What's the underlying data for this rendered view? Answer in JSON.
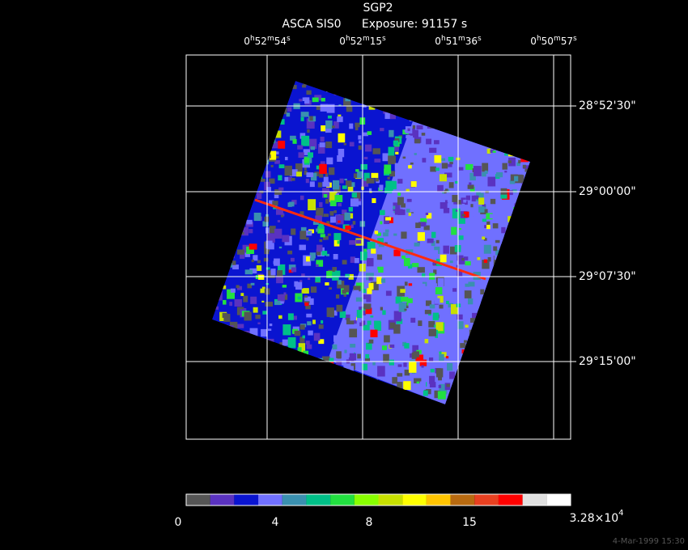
{
  "title": "SGP2",
  "subtitle": {
    "instrument": "ASCA SIS0",
    "exposure": "Exposure: 91157 s"
  },
  "ra_labels": [
    [
      "0",
      "h",
      "52",
      "m",
      "54",
      "s"
    ],
    [
      "0",
      "h",
      "52",
      "m",
      "15",
      "s"
    ],
    [
      "0",
      "h",
      "51",
      "m",
      "36",
      "s"
    ],
    [
      "0",
      "h",
      "50",
      "m",
      "57",
      "s"
    ]
  ],
  "dec_labels": [
    "28°52'30\"",
    "29°00'00\"",
    "29°07'30\"",
    "29°15'00\""
  ],
  "colorbar": {
    "colors": [
      "#555555",
      "#5a32c0",
      "#0a14d0",
      "#7070ff",
      "#3a90b0",
      "#00c088",
      "#22e040",
      "#88ff00",
      "#c8e000",
      "#ffff00",
      "#ffc400",
      "#b86a10",
      "#e84020",
      "#ff0000",
      "#e0e0e0",
      "#ffffff"
    ],
    "labels": [
      "0",
      "4",
      "8",
      "15"
    ],
    "max_label": {
      "mantissa": "3.28×10",
      "exponent": "4"
    }
  },
  "timestamp": "4-Mar-1999 15:30"
}
